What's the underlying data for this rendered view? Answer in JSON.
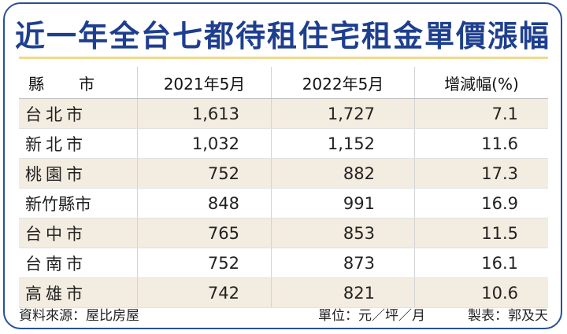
{
  "title": "近一年全台七都待租住宅租金單價漲幅",
  "headers": {
    "county_a": "縣",
    "county_b": "市",
    "col1": "2021年5月",
    "col2": "2022年5月",
    "col3": "增減幅(%)"
  },
  "rows": [
    {
      "name": "台北市",
      "v2021": "1,613",
      "v2022": "1,727",
      "change": "7.1"
    },
    {
      "name": "新北市",
      "v2021": "1,032",
      "v2022": "1,152",
      "change": "11.6"
    },
    {
      "name": "桃園市",
      "v2021": "752",
      "v2022": "882",
      "change": "17.3"
    },
    {
      "name": "新竹縣市",
      "v2021": "848",
      "v2022": "991",
      "change": "16.9"
    },
    {
      "name": "台中市",
      "v2021": "765",
      "v2022": "853",
      "change": "11.5"
    },
    {
      "name": "台南市",
      "v2021": "752",
      "v2022": "873",
      "change": "16.1"
    },
    {
      "name": "高雄市",
      "v2021": "742",
      "v2022": "821",
      "change": "10.6"
    }
  ],
  "footer": {
    "source": "資料來源：屋比房屋",
    "unit": "單位：元／坪／月",
    "maker": "製表：郭及天"
  },
  "colors": {
    "title": "#1e3f8f",
    "border": "#2a4f9a",
    "shaded_row": "#f3ece0",
    "title_rule": "#f0d98c"
  }
}
